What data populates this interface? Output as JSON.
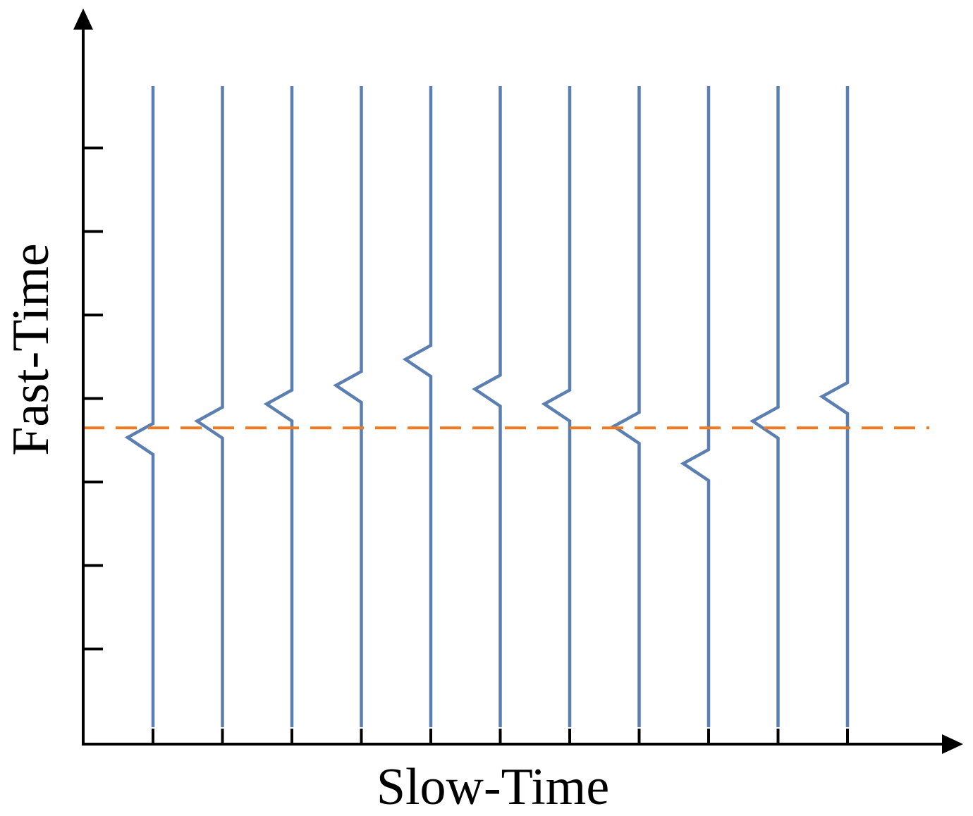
{
  "diagram": {
    "x_axis_label": "Slow-Time",
    "y_axis_label": "Fast-Time",
    "colors": {
      "axis": "#000000",
      "trace": "#5b7fb1",
      "reference_line": "#ee7a22"
    },
    "reference_line_style": "dashed",
    "trace_count": 11,
    "y_tick_count": 7,
    "trace_pulse_levels": [
      0.59,
      0.568,
      0.545,
      0.52,
      0.485,
      0.525,
      0.545,
      0.575,
      0.625,
      0.568,
      0.535
    ],
    "reference_level": 0.575
  }
}
